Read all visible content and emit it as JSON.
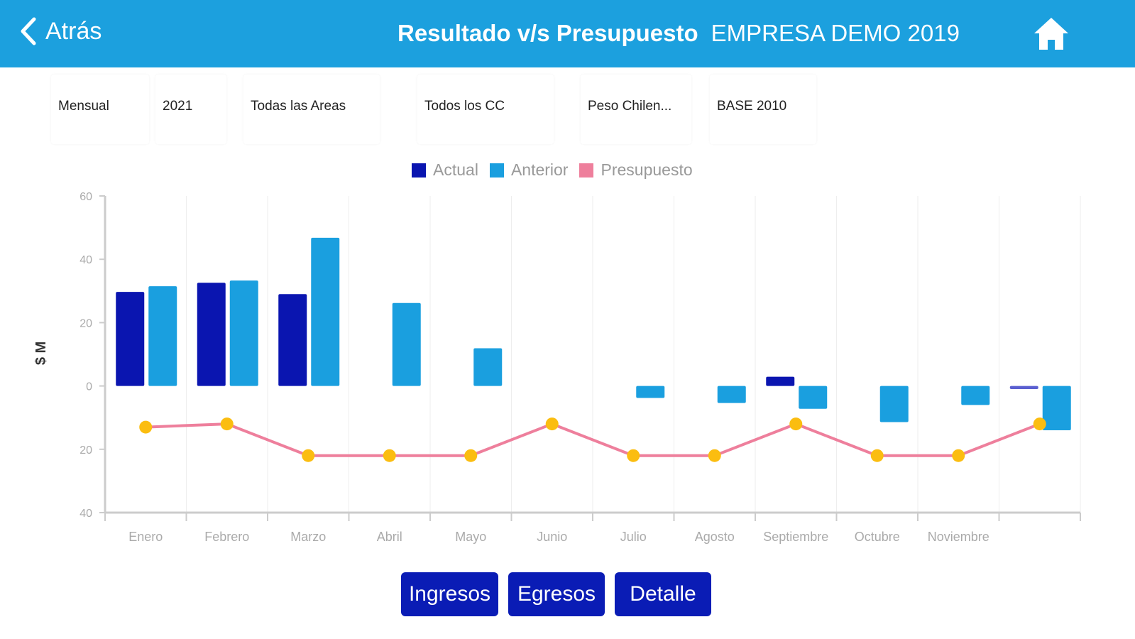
{
  "header": {
    "back_label": "Atrás",
    "title": "Resultado v/s Presupuesto",
    "company": "EMPRESA DEMO 2019"
  },
  "filters": [
    "Mensual",
    "2021",
    "Todas las Areas",
    "Todos los CC",
    "Peso Chilen...",
    "BASE 2010"
  ],
  "buttons": {
    "ingresos": "Ingresos",
    "egresos": "Egresos",
    "detalle": "Detalle"
  },
  "colors": {
    "header": "#1ca0de",
    "actual": "#0a15b0",
    "anterior": "#1a9fdf",
    "presupuesto": "#ee7f9c",
    "marker": "#fbbd10",
    "button": "#0a1cb5"
  },
  "chart_data": {
    "type": "bar",
    "ylabel": "$ M",
    "ylim": [
      -40,
      60
    ],
    "yticks": [
      60,
      40,
      20,
      0,
      -20,
      -40
    ],
    "ytick_labels": [
      "60",
      "40",
      "20",
      "0",
      "20",
      "40"
    ],
    "categories": [
      "Enero",
      "Febrero",
      "Marzo",
      "Abril",
      "Mayo",
      "Junio",
      "Julio",
      "Agosto",
      "Septiembre",
      "Octubre",
      "Noviembre",
      ""
    ],
    "legend": [
      "Actual",
      "Anterior",
      "Presupuesto"
    ],
    "series": [
      {
        "name": "Actual",
        "type": "bar",
        "values": [
          29.7,
          32.6,
          29,
          0,
          0,
          0,
          0,
          0,
          2.9,
          0,
          0,
          -1
        ]
      },
      {
        "name": "Anterior",
        "type": "bar",
        "values": [
          31.5,
          33.3,
          46.8,
          26.2,
          11.9,
          0,
          -3.8,
          -5.4,
          -7.2,
          -11.4,
          -6,
          -14
        ]
      },
      {
        "name": "Presupuesto",
        "type": "line",
        "values": [
          -13,
          -12,
          -22,
          -22,
          -22,
          -12,
          -22,
          -22,
          -12,
          -22,
          -22,
          -12
        ]
      }
    ]
  }
}
